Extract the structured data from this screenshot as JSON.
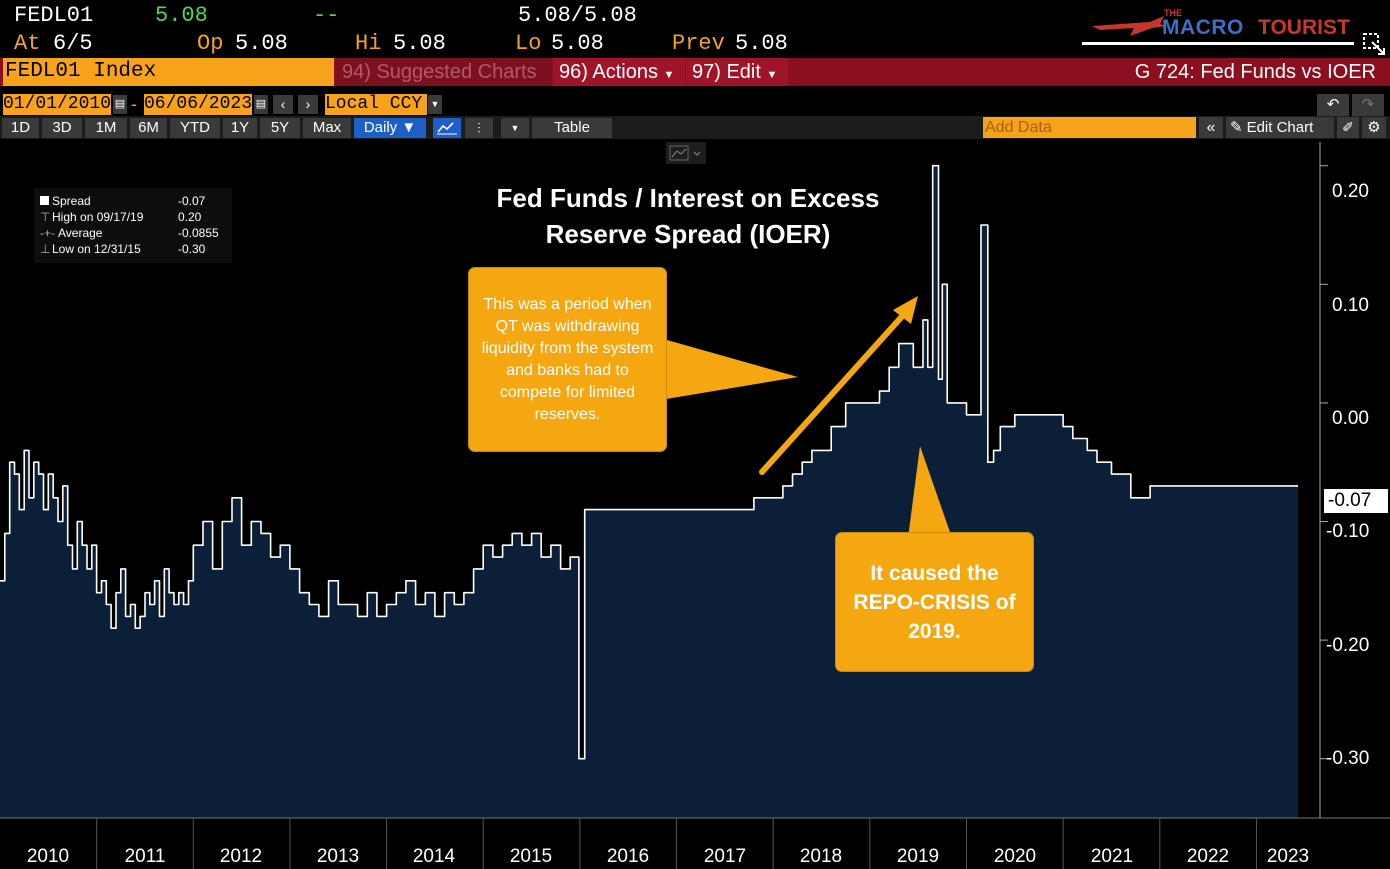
{
  "header": {
    "ticker": "FEDL01",
    "last": "5.08",
    "change": "--",
    "bid_ask": "5.08/5.08",
    "at_label": "At",
    "at_value": "6/5",
    "op_label": "Op",
    "op_value": "5.08",
    "hi_label": "Hi",
    "hi_value": "5.08",
    "lo_label": "Lo",
    "lo_value": "5.08",
    "prev_label": "Prev",
    "prev_value": "5.08"
  },
  "logo": {
    "small": "THE",
    "word1": "MACRO",
    "word2": "TOURIST"
  },
  "command_bar": {
    "security": "FEDL01 Index",
    "suggested": "94) Suggested Charts",
    "actions": "96) Actions",
    "edit": "97) Edit",
    "page_title": "G 724: Fed Funds vs IOER"
  },
  "date_bar": {
    "start": "01/01/2010",
    "dash": "-",
    "end": "06/06/2023",
    "currency": "Local CCY"
  },
  "period_bar": {
    "periods": [
      "1D",
      "3D",
      "1M",
      "6M",
      "YTD",
      "1Y",
      "5Y",
      "Max"
    ],
    "frequency": "Daily ▼",
    "table": "Table",
    "add_data": "Add Data",
    "edit_chart": "Edit Chart"
  },
  "legend": {
    "series": "Spread",
    "series_value": "-0.07",
    "high_label": "High on 09/17/19",
    "high_value": "0.20",
    "avg_label": "Average",
    "avg_value": "-0.0855",
    "low_label": "Low on 12/31/15",
    "low_value": "-0.30"
  },
  "annotations": {
    "box1": "This was a period when QT was withdrawing liquidity from the system and banks had to compete for limited reserves.",
    "box2": "It caused the REPO-CRISIS of 2019."
  },
  "colors": {
    "area_fill": "#0b2038",
    "line": "#ffffff",
    "callout": "#f4a711",
    "bar_red": "#8b0f1f",
    "accent_orange": "#f7a21b"
  },
  "chart_data": {
    "type": "area",
    "title": "Fed Funds / Interest on Excess Reserve Spread (IOER)",
    "xlabel": "",
    "ylabel": "",
    "ylim": [
      -0.35,
      0.22
    ],
    "xlim": [
      2010.0,
      2023.43
    ],
    "y_ticks": [
      "0.20",
      "0.10",
      "0.00",
      "-0.10",
      "-0.20",
      "-0.30"
    ],
    "y_tick_values": [
      0.2,
      0.1,
      0.0,
      -0.1,
      -0.2,
      -0.3
    ],
    "last_value_label": "-0.07",
    "last_value": -0.07,
    "x_tick_labels": [
      "2010",
      "2011",
      "2012",
      "2013",
      "2014",
      "2015",
      "2016",
      "2017",
      "2018",
      "2019",
      "2020",
      "2021",
      "2022",
      "2023"
    ],
    "series": [
      {
        "name": "Spread",
        "x": [
          2010.0,
          2010.05,
          2010.1,
          2010.15,
          2010.2,
          2010.25,
          2010.3,
          2010.35,
          2010.4,
          2010.45,
          2010.5,
          2010.55,
          2010.6,
          2010.65,
          2010.7,
          2010.75,
          2010.8,
          2010.85,
          2010.9,
          2010.95,
          2011.0,
          2011.05,
          2011.1,
          2011.15,
          2011.2,
          2011.25,
          2011.3,
          2011.35,
          2011.4,
          2011.45,
          2011.5,
          2011.55,
          2011.6,
          2011.65,
          2011.7,
          2011.75,
          2011.8,
          2011.85,
          2011.9,
          2011.95,
          2012.0,
          2012.1,
          2012.2,
          2012.3,
          2012.4,
          2012.5,
          2012.6,
          2012.7,
          2012.8,
          2012.9,
          2013.0,
          2013.1,
          2013.2,
          2013.3,
          2013.4,
          2013.5,
          2013.6,
          2013.7,
          2013.8,
          2013.9,
          2014.0,
          2014.1,
          2014.2,
          2014.3,
          2014.4,
          2014.5,
          2014.6,
          2014.7,
          2014.8,
          2014.9,
          2015.0,
          2015.1,
          2015.2,
          2015.3,
          2015.4,
          2015.5,
          2015.6,
          2015.7,
          2015.8,
          2015.9,
          2015.99,
          2016.05,
          2016.15,
          2016.3,
          2016.5,
          2016.7,
          2016.9,
          2017.0,
          2017.2,
          2017.4,
          2017.5,
          2017.65,
          2017.8,
          2017.9,
          2018.0,
          2018.1,
          2018.2,
          2018.3,
          2018.4,
          2018.5,
          2018.6,
          2018.75,
          2018.9,
          2019.0,
          2019.1,
          2019.2,
          2019.3,
          2019.45,
          2019.55,
          2019.6,
          2019.65,
          2019.71,
          2019.75,
          2019.8,
          2019.9,
          2020.0,
          2020.05,
          2020.15,
          2020.22,
          2020.28,
          2020.35,
          2020.5,
          2020.7,
          2020.9,
          2021.0,
          2021.1,
          2021.2,
          2021.25,
          2021.35,
          2021.5,
          2021.7,
          2021.9,
          2022.0,
          2022.3,
          2022.6,
          2022.9,
          2023.1,
          2023.2,
          2023.3,
          2023.43
        ],
        "values": [
          -0.15,
          -0.11,
          -0.05,
          -0.06,
          -0.09,
          -0.04,
          -0.08,
          -0.05,
          -0.06,
          -0.09,
          -0.06,
          -0.08,
          -0.1,
          -0.07,
          -0.12,
          -0.14,
          -0.1,
          -0.12,
          -0.14,
          -0.12,
          -0.16,
          -0.15,
          -0.17,
          -0.19,
          -0.16,
          -0.14,
          -0.18,
          -0.17,
          -0.19,
          -0.18,
          -0.16,
          -0.17,
          -0.15,
          -0.18,
          -0.14,
          -0.16,
          -0.17,
          -0.16,
          -0.17,
          -0.15,
          -0.12,
          -0.1,
          -0.14,
          -0.1,
          -0.08,
          -0.12,
          -0.1,
          -0.11,
          -0.13,
          -0.12,
          -0.14,
          -0.16,
          -0.17,
          -0.18,
          -0.15,
          -0.17,
          -0.17,
          -0.18,
          -0.16,
          -0.18,
          -0.17,
          -0.16,
          -0.15,
          -0.17,
          -0.16,
          -0.18,
          -0.16,
          -0.17,
          -0.16,
          -0.14,
          -0.12,
          -0.13,
          -0.12,
          -0.11,
          -0.12,
          -0.11,
          -0.13,
          -0.12,
          -0.14,
          -0.13,
          -0.3,
          -0.09,
          -0.09,
          -0.09,
          -0.09,
          -0.09,
          -0.09,
          -0.09,
          -0.09,
          -0.09,
          -0.09,
          -0.09,
          -0.08,
          -0.08,
          -0.08,
          -0.07,
          -0.06,
          -0.05,
          -0.04,
          -0.04,
          -0.02,
          0.0,
          0.0,
          0.0,
          0.01,
          0.03,
          0.05,
          0.03,
          0.07,
          0.03,
          0.2,
          0.02,
          0.1,
          0.0,
          0.0,
          -0.01,
          -0.01,
          0.15,
          -0.05,
          -0.04,
          -0.02,
          -0.01,
          -0.01,
          -0.01,
          -0.02,
          -0.03,
          -0.03,
          -0.04,
          -0.05,
          -0.06,
          -0.08,
          -0.07,
          -0.07,
          -0.07,
          -0.07,
          -0.07,
          -0.07,
          -0.07,
          -0.07,
          -0.07
        ]
      }
    ]
  }
}
